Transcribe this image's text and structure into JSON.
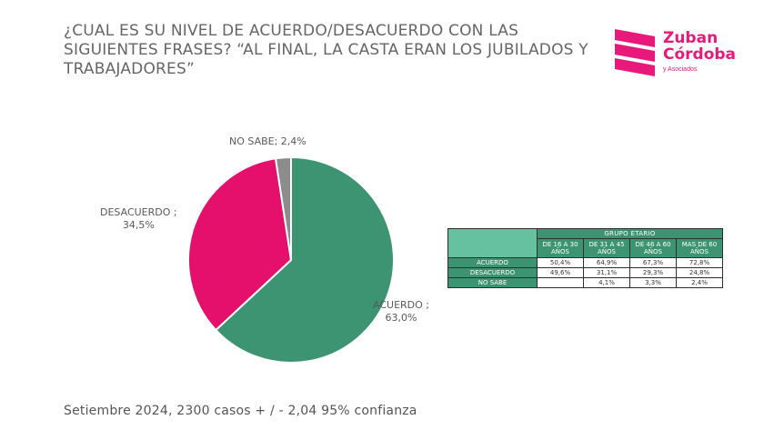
{
  "title_lines": [
    "¿CUAL ES SU NIVEL DE ACUERDO/DESACUERDO CON LAS",
    "SIGUIENTES FRASES? “AL FINAL, LA CASTA ERAN LOS JUBILADOS Y",
    "TRABAJADORES”"
  ],
  "logo": {
    "line1": "Zuban",
    "line2": "Córdoba",
    "line3": "y Asociados",
    "color": "#e8197a"
  },
  "chart_data": {
    "type": "pie",
    "slices": [
      {
        "label": "ACUERDO ;",
        "value": 63.0,
        "value_text": "63,0%",
        "color": "#3d9472"
      },
      {
        "label": "DESACUERDO ;",
        "value": 34.5,
        "value_text": "34,5%",
        "color": "#e5106c"
      },
      {
        "label": "NO SABE; 2,4%",
        "value": 2.4,
        "value_text": "",
        "color": "#8c8c8c"
      }
    ]
  },
  "table": {
    "group_header": "GRUPO ETARIO",
    "columns": [
      [
        "DE 16 A 30",
        "AÑOS"
      ],
      [
        "DE 31 A 45",
        "AÑOS"
      ],
      [
        "DE 46 A 60",
        "AÑOS"
      ],
      [
        "MAS DE 60",
        "AÑOS"
      ]
    ],
    "rows": [
      {
        "label": "ACUERDO",
        "values": [
          "50,4%",
          "64,9%",
          "67,3%",
          "72,8%"
        ]
      },
      {
        "label": "DESACUERDO",
        "values": [
          "49,6%",
          "31,1%",
          "29,3%",
          "24,8%"
        ]
      },
      {
        "label": "NO SABE",
        "values": [
          "",
          "4,1%",
          "3,3%",
          "2,4%"
        ]
      }
    ]
  },
  "footer": "Setiembre 2024, 2300 casos + / - 2,04 95% confianza"
}
